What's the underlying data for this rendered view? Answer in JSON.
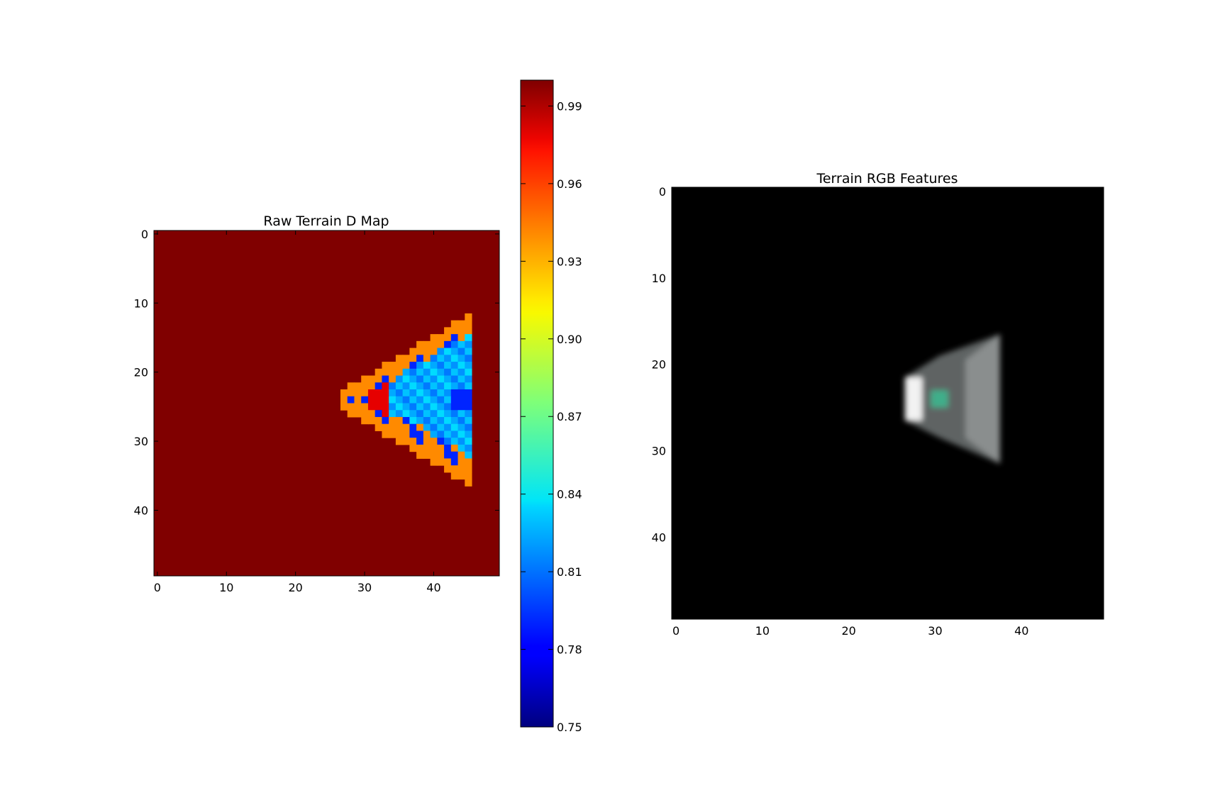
{
  "chart_data": [
    {
      "type": "heatmap",
      "title": "Raw Terrain D Map",
      "grid_shape": [
        50,
        50
      ],
      "xlim": [
        0,
        50
      ],
      "ylim": [
        50,
        0
      ],
      "x_ticks": [
        "0",
        "10",
        "20",
        "30",
        "40"
      ],
      "y_ticks": [
        "0",
        "10",
        "20",
        "30",
        "40"
      ],
      "grid": false,
      "colormap": "jet",
      "background_value": 1.0,
      "colorbar": {
        "range": [
          0.75,
          1.0
        ],
        "ticks": [
          "0.75",
          "0.78",
          "0.81",
          "0.84",
          "0.87",
          "0.90",
          "0.93",
          "0.96",
          "0.99"
        ],
        "placement": "right"
      },
      "region": {
        "apex": [
          27,
          24.5
        ],
        "right_edge_x": 46,
        "top_y": 16,
        "bottom_y": 33,
        "cyan_fill_value": 0.835,
        "rings": [
          {
            "name": "outer",
            "value": 0.935
          },
          {
            "name": "edge",
            "value": 0.79
          },
          {
            "name": "inner_left",
            "value": 0.79
          },
          {
            "name": "inner_red",
            "value": 0.975
          }
        ]
      }
    },
    {
      "type": "heatmap",
      "title": "Terrain RGB Features",
      "grid_shape": [
        50,
        50
      ],
      "xlim": [
        0,
        50
      ],
      "ylim": [
        50,
        0
      ],
      "x_ticks": [
        "0",
        "10",
        "20",
        "30",
        "40"
      ],
      "y_ticks": [
        "0",
        "10",
        "20",
        "30",
        "40"
      ],
      "grid": false,
      "background_color": "#000000",
      "region": {
        "apex": [
          27,
          24.5
        ],
        "right_edge_x": 38,
        "top_y": 17,
        "bottom_y": 32,
        "base_color": "#5f6363",
        "bright_patch": {
          "x": [
            27,
            29
          ],
          "y": [
            22,
            27
          ],
          "color": "#f2f2f2"
        },
        "teal_patch": {
          "x": [
            30,
            32
          ],
          "y": [
            23.5,
            25.5
          ],
          "color": "#3fae8a"
        }
      }
    }
  ]
}
